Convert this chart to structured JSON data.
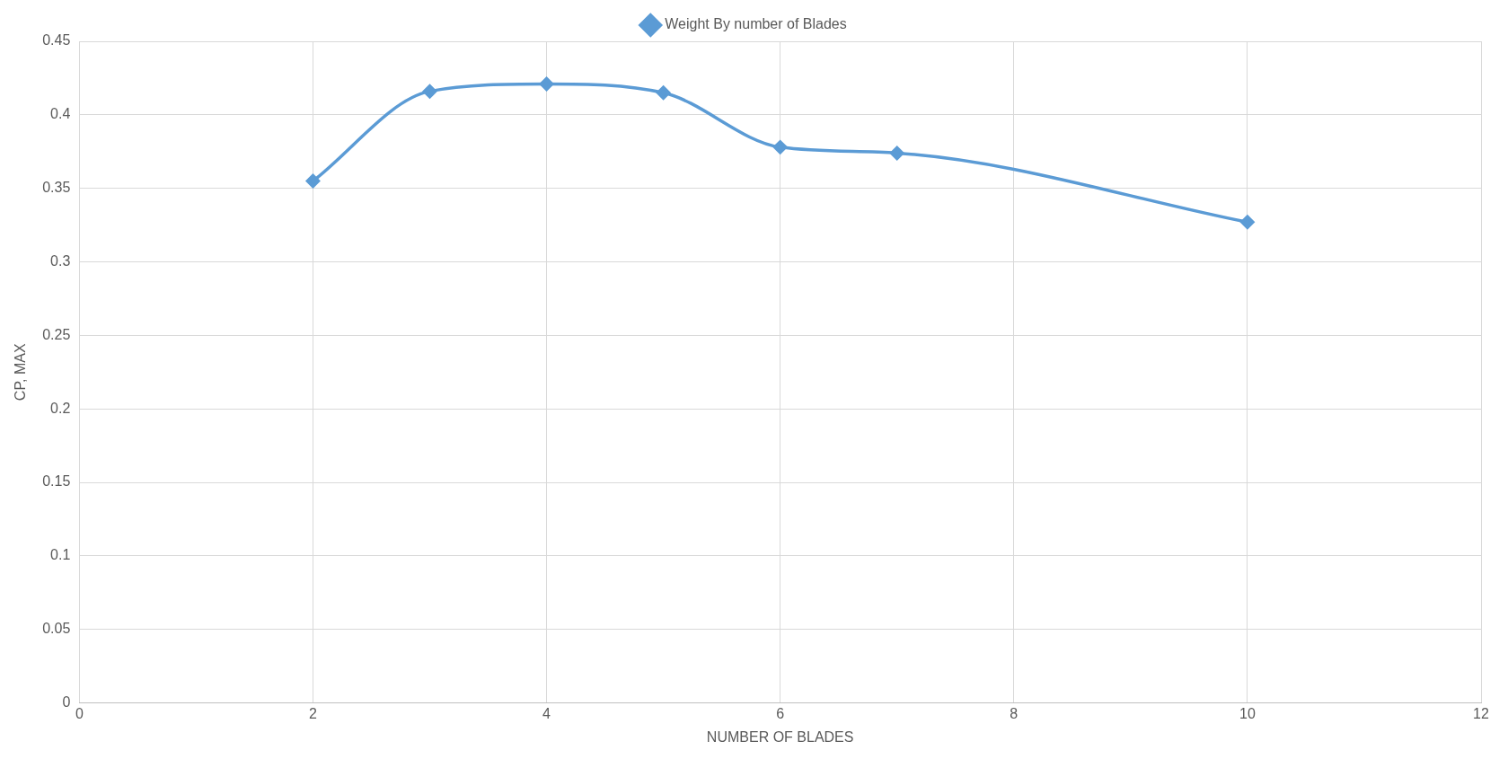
{
  "chart_data": {
    "type": "line",
    "xlabel": "NUMBER OF BLADES",
    "ylabel": "CP, MAX",
    "x": [
      2,
      3,
      4,
      5,
      6,
      7,
      10
    ],
    "series": [
      {
        "name": "Weight By number of Blades",
        "color": "#5b9bd5",
        "values": [
          0.355,
          0.416,
          0.421,
          0.415,
          0.378,
          0.374,
          0.327
        ]
      }
    ],
    "xlim": [
      0,
      12
    ],
    "xticks": [
      0,
      2,
      4,
      6,
      8,
      10,
      12
    ],
    "ylim": [
      0,
      0.45
    ],
    "yticks": [
      0,
      0.05,
      0.1,
      0.15,
      0.2,
      0.25,
      0.3,
      0.35,
      0.4,
      0.45
    ],
    "grid": true,
    "legend": "top",
    "marker": "diamond",
    "line_style": "solid"
  }
}
